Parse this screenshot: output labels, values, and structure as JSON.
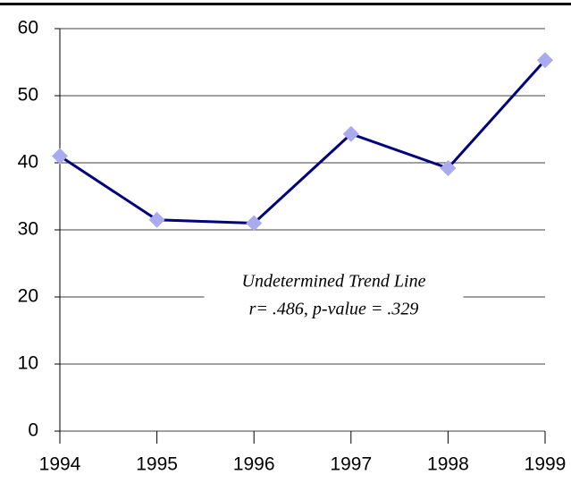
{
  "chart_data": {
    "type": "line",
    "x": [
      1994,
      1995,
      1996,
      1997,
      1998,
      1999
    ],
    "values": [
      41,
      31.5,
      31,
      44.3,
      39.2,
      55.3
    ],
    "color": "#000080",
    "marker_color": "#aaaaee",
    "xlim": [
      1994,
      1999
    ],
    "xticks": [
      1994,
      1995,
      1996,
      1997,
      1998,
      1999
    ],
    "ylim": [
      0,
      60
    ],
    "yticks": [
      0,
      10,
      20,
      30,
      40,
      50,
      60
    ],
    "grid": true,
    "annotations": [
      "Undetermined Trend Line",
      "r= .486, p-value = .329"
    ]
  }
}
